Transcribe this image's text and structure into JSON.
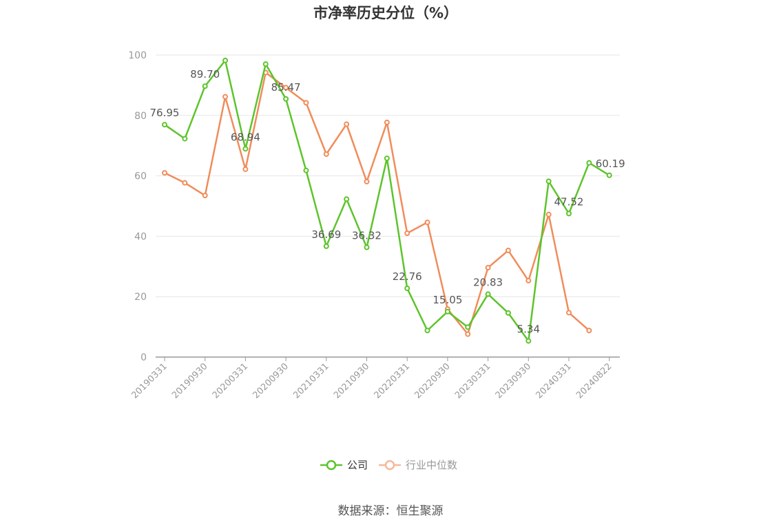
{
  "chart_data": {
    "type": "line",
    "title": "市净率历史分位（%）",
    "source": "数据来源：恒生聚源",
    "ylim": [
      0,
      100
    ],
    "yticks": [
      0,
      20,
      40,
      60,
      80,
      100
    ],
    "x_tick_labels": [
      "20190331",
      "20190930",
      "20200331",
      "20200930",
      "20210331",
      "20210930",
      "20220331",
      "20220930",
      "20230331",
      "20230930",
      "20240331",
      "20240822"
    ],
    "x": [
      "20190331",
      "20190630",
      "20190930",
      "20191231",
      "20200331",
      "20200630",
      "20200930",
      "20201231",
      "20210331",
      "20210630",
      "20210930",
      "20211231",
      "20220331",
      "20220630",
      "20220930",
      "20221231",
      "20230331",
      "20230630",
      "20230930",
      "20231231",
      "20240331",
      "20240630",
      "20240822"
    ],
    "legend": [
      "公司",
      "行业中位数"
    ],
    "legend_placement": "bottom",
    "grid": true,
    "series": [
      {
        "name": "公司",
        "color": "#5cc42a",
        "values": [
          76.95,
          72.3,
          89.7,
          98.2,
          68.94,
          97.0,
          85.47,
          61.8,
          36.69,
          52.3,
          36.32,
          65.8,
          22.76,
          8.8,
          15.05,
          9.9,
          20.83,
          14.6,
          5.34,
          58.2,
          47.52,
          64.3,
          60.19
        ]
      },
      {
        "name": "行业中位数",
        "color": "#f08c5a",
        "values": [
          61.0,
          57.7,
          53.5,
          86.2,
          62.2,
          94.2,
          89.2,
          84.2,
          67.2,
          77.1,
          58.1,
          77.7,
          41.0,
          44.6,
          15.9,
          7.6,
          29.6,
          35.3,
          25.3,
          47.2,
          14.7,
          8.8,
          null
        ]
      }
    ],
    "data_labels": [
      {
        "index": 0,
        "text": "76.95"
      },
      {
        "index": 2,
        "text": "89.70"
      },
      {
        "index": 4,
        "text": "68.94"
      },
      {
        "index": 6,
        "text": "85.47"
      },
      {
        "index": 8,
        "text": "36.69"
      },
      {
        "index": 10,
        "text": "36.32"
      },
      {
        "index": 12,
        "text": "22.76"
      },
      {
        "index": 14,
        "text": "15.05"
      },
      {
        "index": 16,
        "text": "20.83"
      },
      {
        "index": 18,
        "text": "5.34"
      },
      {
        "index": 20,
        "text": "47.52"
      },
      {
        "index": 22,
        "text": "60.19"
      }
    ]
  }
}
